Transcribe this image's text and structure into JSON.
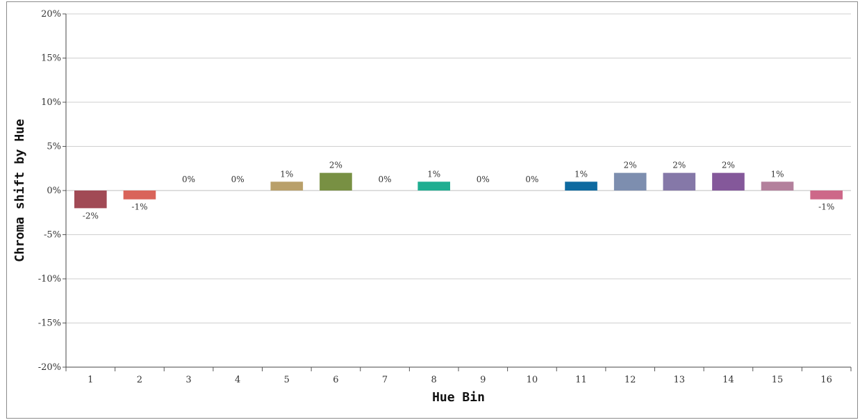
{
  "chart_data": {
    "type": "bar",
    "xlabel": "Hue Bin",
    "ylabel": "Chroma shift by Hue",
    "ylim": [
      -20,
      20
    ],
    "yticks": [
      20,
      15,
      10,
      5,
      0,
      -5,
      -10,
      -15,
      -20
    ],
    "ytick_labels": [
      "20%",
      "15%",
      "10%",
      "5%",
      "0%",
      "-5%",
      "-10%",
      "-15%",
      "-20%"
    ],
    "grid": true,
    "categories": [
      "1",
      "2",
      "3",
      "4",
      "5",
      "6",
      "7",
      "8",
      "9",
      "10",
      "11",
      "12",
      "13",
      "14",
      "15",
      "16"
    ],
    "values": [
      -2,
      -1,
      0,
      0,
      1,
      2,
      0,
      1,
      0,
      0,
      1,
      2,
      2,
      2,
      1,
      -1
    ],
    "data_labels": [
      "-2%",
      "-1%",
      "0%",
      "0%",
      "1%",
      "2%",
      "0%",
      "1%",
      "0%",
      "0%",
      "1%",
      "2%",
      "2%",
      "2%",
      "1%",
      "-1%"
    ],
    "colors": [
      "#a14a55",
      "#d9645a",
      "#b9a06a",
      "#b9a06a",
      "#b9a06a",
      "#789043",
      "#2bb592",
      "#1fae91",
      "#1f86a8",
      "#0e6aa0",
      "#0e6aa0",
      "#7d8eaf",
      "#8578a8",
      "#84589a",
      "#b3809c",
      "#cd6889"
    ]
  }
}
